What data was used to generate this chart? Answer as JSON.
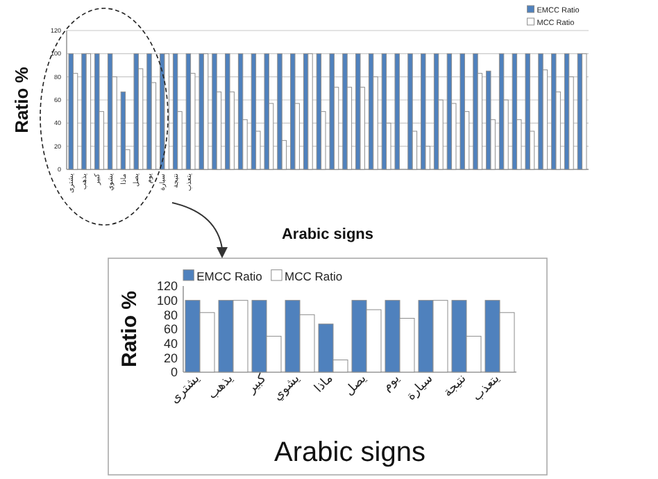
{
  "chart_data": [
    {
      "type": "bar",
      "xlabel": "Arabic signs",
      "ylabel": "Ratio %",
      "categories": [
        "يشترى",
        "يذهب",
        "كبير",
        "يشوي",
        "ماذا",
        "يصل",
        "يوم",
        "سيارة",
        "نتيجة",
        "يتعذب",
        null,
        null,
        null,
        null,
        null,
        null,
        null,
        null,
        null,
        null,
        null,
        null,
        null,
        null,
        null,
        null,
        null,
        null,
        null,
        null,
        null,
        null,
        null,
        null,
        null,
        null,
        null,
        null,
        null,
        null
      ],
      "series": [
        {
          "name": "EMCC Ratio",
          "color": "#4f81bd",
          "values": [
            100,
            100,
            100,
            100,
            67,
            100,
            100,
            100,
            100,
            100,
            100,
            100,
            100,
            100,
            100,
            100,
            100,
            100,
            100,
            100,
            100,
            100,
            100,
            100,
            100,
            100,
            100,
            100,
            100,
            100,
            100,
            100,
            85,
            100,
            100,
            100,
            100,
            100,
            100,
            100
          ]
        },
        {
          "name": "MCC Ratio",
          "color": "#ffffff",
          "values": [
            83,
            100,
            50,
            80,
            17,
            87,
            75,
            100,
            50,
            83,
            100,
            67,
            67,
            43,
            33,
            57,
            25,
            57,
            100,
            50,
            71,
            71,
            71,
            80,
            40,
            0,
            33,
            20,
            60,
            57,
            50,
            83,
            43,
            60,
            43,
            33,
            86,
            67,
            80,
            100
          ]
        }
      ],
      "ylim": [
        0,
        120
      ],
      "yticks": [
        0,
        20,
        40,
        60,
        80,
        100,
        120
      ],
      "grid": "y",
      "legend": "top right"
    },
    {
      "type": "bar",
      "xlabel": "Arabic signs",
      "ylabel": "Ratio %",
      "categories": [
        "يشترى",
        "يذهب",
        "كبير",
        "يشوي",
        "ماذا",
        "يصل",
        "يوم",
        "سيارة",
        "نتيجة",
        "يتعذب"
      ],
      "series": [
        {
          "name": "EMCC Ratio",
          "color": "#4f81bd",
          "values": [
            100,
            100,
            100,
            100,
            67,
            100,
            100,
            100,
            100,
            100
          ]
        },
        {
          "name": "MCC Ratio",
          "color": "#ffffff",
          "values": [
            83,
            100,
            50,
            80,
            17,
            87,
            75,
            100,
            50,
            83
          ]
        }
      ],
      "ylim": [
        0,
        120
      ],
      "yticks": [
        0,
        20,
        40,
        60,
        80,
        100,
        120
      ],
      "legend": "top left"
    }
  ]
}
